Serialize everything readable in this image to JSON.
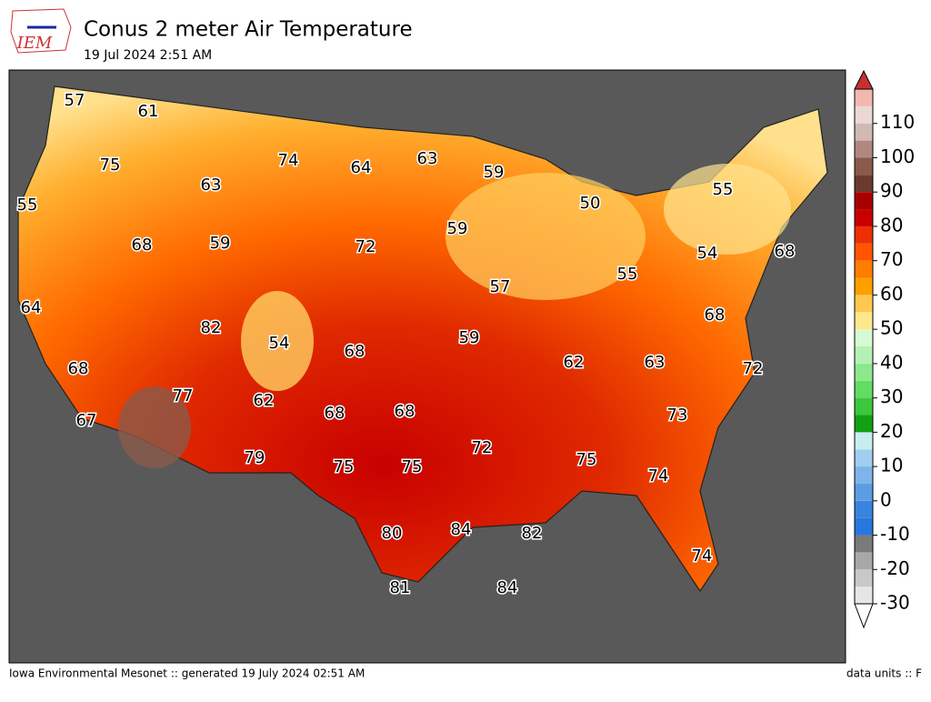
{
  "header": {
    "logo": "IEM",
    "title": "Conus 2 meter Air Temperature",
    "subtitle": "19 Jul 2024 2:51 AM"
  },
  "map": {
    "labels": [
      57,
      61,
      75,
      74,
      64,
      63,
      59,
      50,
      55,
      55,
      63,
      68,
      59,
      72,
      59,
      54,
      68,
      57,
      55,
      64,
      82,
      54,
      68,
      59,
      68,
      62,
      63,
      72,
      68,
      77,
      62,
      68,
      68,
      73,
      67,
      72,
      75,
      79,
      75,
      75,
      74,
      80,
      84,
      82,
      74,
      81,
      84
    ]
  },
  "colorbar": {
    "range": [
      -30,
      120
    ],
    "ticks": [
      -30,
      -20,
      -10,
      0,
      10,
      20,
      30,
      40,
      50,
      60,
      70,
      80,
      90,
      100,
      110
    ],
    "colors": [
      "#e6e6e6",
      "#c8c8c8",
      "#a8a8a8",
      "#7a7a7a",
      "#2878dc",
      "#3a84e0",
      "#5b9de0",
      "#7eb4ea",
      "#a0cdf0",
      "#c8ecf0",
      "#12a012",
      "#3cc83c",
      "#64dc64",
      "#8ce88c",
      "#b4f0b4",
      "#d6fad2",
      "#ffe88c",
      "#ffc850",
      "#ff9f00",
      "#ff7d00",
      "#ff5500",
      "#ee3000",
      "#c80000",
      "#a80000",
      "#6b3a2e",
      "#8a5a4a",
      "#b08880",
      "#d0b8b4",
      "#ead8d4",
      "#f0b8b0"
    ]
  },
  "footer": {
    "left": "Iowa Environmental Mesonet :: generated 19 July 2024 02:51 AM",
    "right": "data units :: F"
  }
}
